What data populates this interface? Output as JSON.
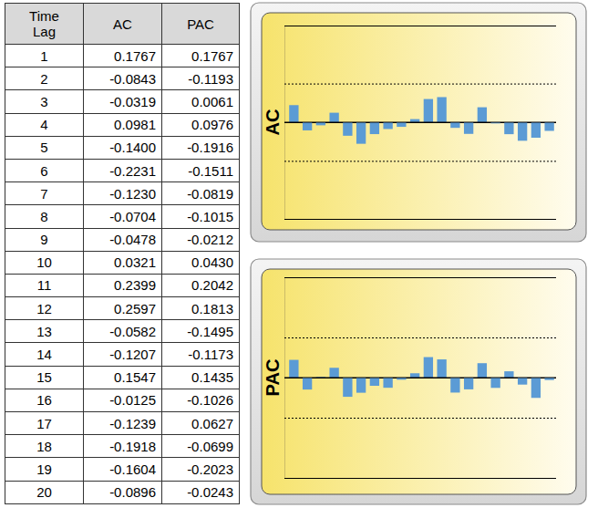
{
  "table": {
    "header": [
      "Time Lag",
      "AC",
      "PAC"
    ],
    "rows": [
      [
        "1",
        "0.1767",
        "0.1767"
      ],
      [
        "2",
        "-0.0843",
        "-0.1193"
      ],
      [
        "3",
        "-0.0319",
        "0.0061"
      ],
      [
        "4",
        "0.0981",
        "0.0976"
      ],
      [
        "5",
        "-0.1400",
        "-0.1916"
      ],
      [
        "6",
        "-0.2231",
        "-0.1511"
      ],
      [
        "7",
        "-0.1230",
        "-0.0819"
      ],
      [
        "8",
        "-0.0704",
        "-0.1015"
      ],
      [
        "9",
        "-0.0478",
        "-0.0212"
      ],
      [
        "10",
        "0.0321",
        "0.0430"
      ],
      [
        "11",
        "0.2399",
        "0.2042"
      ],
      [
        "12",
        "0.2597",
        "0.1813"
      ],
      [
        "13",
        "-0.0582",
        "-0.1495"
      ],
      [
        "14",
        "-0.1207",
        "-0.1173"
      ],
      [
        "15",
        "0.1547",
        "0.1435"
      ],
      [
        "16",
        "-0.0125",
        "-0.1026"
      ],
      [
        "17",
        "-0.1239",
        "0.0627"
      ],
      [
        "18",
        "-0.1918",
        "-0.0699"
      ],
      [
        "19",
        "-0.1604",
        "-0.2023"
      ],
      [
        "20",
        "-0.0896",
        "-0.0243"
      ]
    ]
  },
  "chart_data": [
    {
      "type": "bar",
      "y_label": "AC",
      "categories": [
        null,
        null,
        null,
        null,
        null,
        null,
        null,
        null,
        null,
        null,
        null,
        null,
        null,
        null,
        null,
        null,
        null,
        null,
        null,
        null
      ],
      "values": [
        0.1767,
        -0.0843,
        -0.0319,
        0.0981,
        -0.14,
        -0.2231,
        -0.123,
        -0.0704,
        -0.0478,
        0.0321,
        0.2399,
        0.2597,
        -0.0582,
        -0.1207,
        0.1547,
        -0.0125,
        -0.1239,
        -0.1918,
        -0.1604,
        -0.0896
      ],
      "color": "#5b9bd5",
      "ylim": [
        -1,
        1
      ],
      "yticks": [
        -1,
        -0.4,
        0,
        0.4,
        1
      ],
      "grid": true,
      "tick_labels": false
    },
    {
      "type": "bar",
      "y_label": "PAC",
      "categories": [
        null,
        null,
        null,
        null,
        null,
        null,
        null,
        null,
        null,
        null,
        null,
        null,
        null,
        null,
        null,
        null,
        null,
        null,
        null,
        null
      ],
      "values": [
        0.1767,
        -0.1193,
        0.0061,
        0.0976,
        -0.1916,
        -0.1511,
        -0.0819,
        -0.1015,
        -0.0212,
        0.043,
        0.2042,
        0.1813,
        -0.1495,
        -0.1173,
        0.1435,
        -0.1026,
        0.0627,
        -0.0699,
        -0.2023,
        -0.0243
      ],
      "color": "#5b9bd5",
      "ylim": [
        -1,
        1
      ],
      "yticks": [
        -1,
        -0.4,
        0,
        0.4,
        1
      ],
      "grid": true,
      "tick_labels": false
    }
  ]
}
